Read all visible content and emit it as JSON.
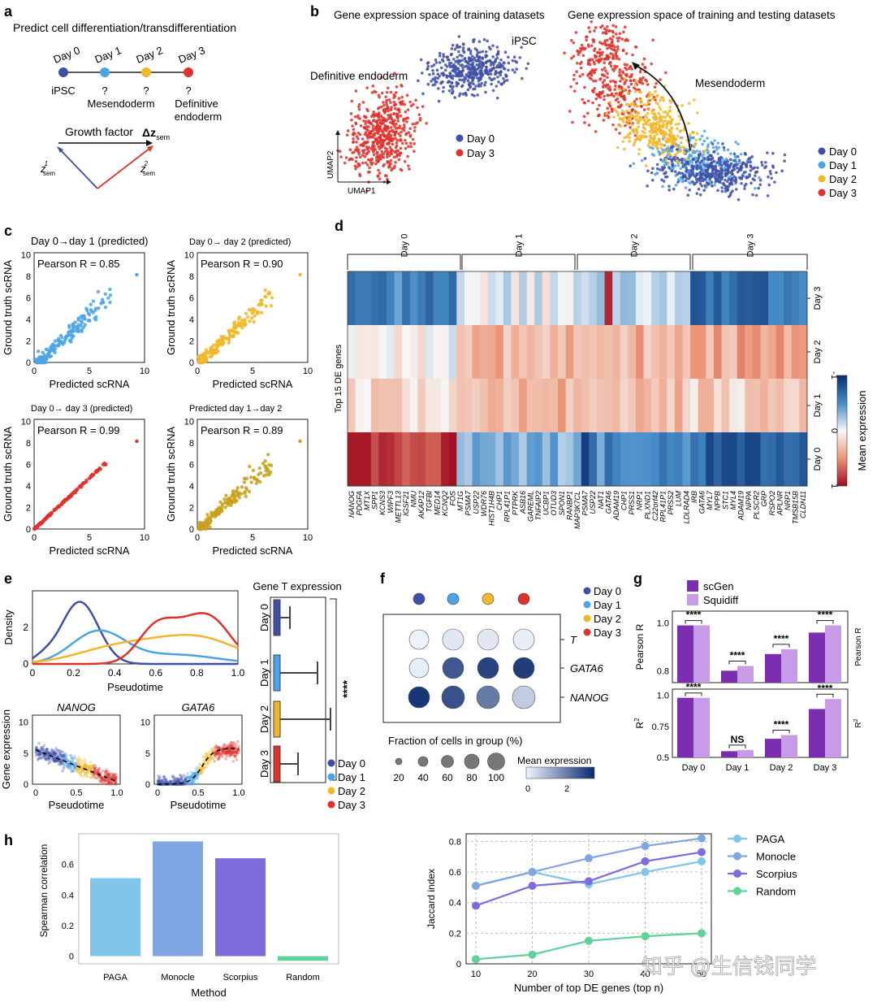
{
  "colors": {
    "day0": "#3f4fa8",
    "day1": "#4aa3e6",
    "day2": "#f1b72a",
    "day3": "#e0312a",
    "scgen": "#7b2fb0",
    "squidiff": "#c89be8",
    "paga": "#7fc6ea",
    "monocle": "#7fa6e3",
    "scorpius": "#7d6cdc",
    "random": "#5fd29a"
  },
  "panel_labels": [
    "a",
    "b",
    "c",
    "d",
    "e",
    "f",
    "g",
    "h"
  ],
  "panel_a": {
    "title": "Predict cell differentiation/transdifferentiation",
    "days": [
      "Day 0",
      "Day 1",
      "Day 2",
      "Day 3"
    ],
    "below": [
      "iPSC",
      "?",
      "?",
      "?"
    ],
    "below2": [
      "",
      "Mesendoderm",
      "",
      "Definitive"
    ],
    "below3": [
      "",
      "",
      "",
      "endoderm"
    ],
    "growth": "Growth factor",
    "delta": "Δz",
    "delta_sub": "sem",
    "z1": "z",
    "z1_sup": "1",
    "z1_sub": "sem",
    "z2": "z",
    "z2_sup": "2",
    "z2_sub": "sem"
  },
  "panel_b": {
    "title_left": "Gene expression space of training datasets",
    "title_right": "Gene expression space of training and testing datasets",
    "label_ipsc": "iPSC",
    "label_de": "Definitive endoderm",
    "label_mes": "Mesendoderm",
    "umap1": "UMAP1",
    "umap2": "UMAP2",
    "legend_left": [
      "Day 0",
      "Day 3"
    ],
    "legend_right": [
      "Day 0",
      "Day 1",
      "Day 2",
      "Day 3"
    ]
  },
  "panel_c": {
    "xlabel": "Predicted scRNA",
    "ylabel": "Ground truth scRNA",
    "ticks": [
      "0",
      "2",
      "4",
      "6",
      "8",
      "10"
    ],
    "xticks": [
      "0",
      "5",
      "10"
    ],
    "plots": [
      {
        "title": "Day 0→day 1 (predicted)",
        "r": "Pearson R = 0.85",
        "color": "day1"
      },
      {
        "title": "Day 0→ day 2 (predicted)",
        "r": "Pearson R = 0.90",
        "color": "day2"
      },
      {
        "title": "Day 0→ day 3 (predicted)",
        "r": "Pearson R = 0.99",
        "color": "day3"
      },
      {
        "title": "Predicted day 1→day 2",
        "r": "Pearson R = 0.89",
        "color": "gold"
      }
    ]
  },
  "panel_d": {
    "groups": [
      "Day 0",
      "Day 1",
      "Day 2",
      "Day 3"
    ],
    "rows": [
      "Day 3",
      "Day 2",
      "Day 1",
      "Day 0"
    ],
    "ylabel": "Top 15 DE genes",
    "cbar_label": "Mean expression",
    "cbar_ticks": [
      "-1",
      "0",
      "1"
    ],
    "genes": [
      "NANOG",
      "PDGFA",
      "MT1X",
      "SPP1",
      "KCNS3",
      "WIPF3",
      "METTL13",
      "IGSF21",
      "NMU",
      "AKAP12",
      "TGFBI",
      "MED14",
      "KCNQ2",
      "FOS",
      "MT1G",
      "PSMA7",
      "USP22",
      "WDR76",
      "HIST1H4B",
      "CHP1",
      "RPL41P1",
      "PTPRK",
      "ASB16",
      "GAREML",
      "TNFAIP2",
      "UCBP1",
      "OTUD3",
      "SPON1",
      "RANBP1",
      "MAP3K7CL",
      "PSMA7",
      "USP22",
      "NAT1",
      "GATA6",
      "ADAM19",
      "CHP1",
      "PRSS1",
      "NRP1",
      "PLXND1",
      "C22orf42",
      "RPL41P1",
      "PRSS2",
      "LUM",
      "LDLRAD4",
      "IRB",
      "GATA6",
      "MYL7",
      "NPPB",
      "STC1",
      "MYL4",
      "ADAM19",
      "NPPA",
      "PLSCR2",
      "GRP",
      "RSPO2",
      "APLNR",
      "NRP1",
      "TMSB15B",
      "CLDN11"
    ]
  },
  "panel_e": {
    "density_ylabel": "Density",
    "density_xlabel": "Pseudotime",
    "density_xticks": [
      "0",
      "0.2",
      "0.4",
      "0.6",
      "0.8",
      "1.0"
    ],
    "density_yticks": [
      "0",
      "2"
    ],
    "box_title": "Gene T expression",
    "box_labels": [
      "Day 0",
      "Day 1",
      "Day 2",
      "Day 3"
    ],
    "sig": "****",
    "nanog": "NANOG",
    "gata6": "GATA6",
    "ge_ylabel": "Gene expression",
    "ge_xlabel": "Pseudotime",
    "ge_xticks": [
      "0",
      "0.5",
      "1.0"
    ],
    "ge_yticks": [
      "0",
      "5",
      "10"
    ],
    "legend": [
      "Day 0",
      "Day 1",
      "Day 2",
      "Day 3"
    ]
  },
  "panel_f": {
    "genes": [
      "T",
      "GATA6",
      "NANOG"
    ],
    "legend": [
      "Day 0",
      "Day 1",
      "Day 2",
      "Day 3"
    ],
    "frac_title": "Fraction of cells in group (%)",
    "frac_ticks": [
      "20",
      "40",
      "60",
      "80",
      "100"
    ],
    "mean_title": "Mean expression",
    "mean_ticks": [
      "0",
      "2"
    ],
    "values": [
      [
        0.05,
        0.2,
        0.2,
        0.1
      ],
      [
        0.1,
        2.3,
        2.6,
        2.7
      ],
      [
        2.8,
        2.4,
        1.8,
        0.6
      ]
    ]
  },
  "panel_g": {
    "legend": [
      "scGen",
      "Squidiff"
    ],
    "ylabel_top": "Pearson R",
    "ylabel_bottom": "R",
    "ylabel_bottom_sup": "2",
    "right_top": "Pearson R",
    "right_bottom": "R",
    "right_bottom_sup": "2",
    "yticks_top": [
      "0.8",
      "1.0"
    ],
    "yticks_bottom": [
      "0.5",
      "0.75",
      "1.0"
    ],
    "categories": [
      "Day 0",
      "Day 1",
      "Day 2",
      "Day 3"
    ],
    "sig_top": [
      "****",
      "****",
      "****",
      "****"
    ],
    "sig_bottom": [
      "****",
      "NS",
      "****",
      "****"
    ],
    "pearson": {
      "scgen": [
        0.99,
        0.8,
        0.87,
        0.96
      ],
      "squidiff": [
        0.99,
        0.82,
        0.89,
        0.99
      ]
    },
    "r2": {
      "scgen": [
        0.98,
        0.55,
        0.65,
        0.89
      ],
      "squidiff": [
        0.98,
        0.56,
        0.68,
        0.97
      ]
    }
  },
  "chart_data": [
    {
      "type": "bar",
      "title": "",
      "categories": [
        "PAGA",
        "Monocle",
        "Scorpius",
        "Random"
      ],
      "values": [
        0.51,
        0.75,
        0.64,
        -0.03
      ],
      "xlabel": "Method",
      "ylabel": "Spearman correlation",
      "ylim": [
        -0.05,
        0.8
      ],
      "yticks": [
        "0",
        "0.2",
        "0.4",
        "0.6"
      ]
    },
    {
      "type": "line",
      "title": "",
      "x": [
        10,
        20,
        30,
        40,
        50
      ],
      "series": [
        {
          "name": "PAGA",
          "values": [
            0.51,
            0.6,
            0.52,
            0.6,
            0.67
          ]
        },
        {
          "name": "Monocle",
          "values": [
            0.51,
            0.6,
            0.69,
            0.77,
            0.82
          ]
        },
        {
          "name": "Scorpius",
          "values": [
            0.38,
            0.51,
            0.54,
            0.67,
            0.73
          ]
        },
        {
          "name": "Random",
          "values": [
            0.03,
            0.06,
            0.15,
            0.18,
            0.2
          ]
        }
      ],
      "xlabel": "Number of top DE genes (top n)",
      "ylabel": "Jaccard index",
      "xticks": [
        "10",
        "20",
        "30",
        "40",
        "50"
      ],
      "yticks": [
        "0",
        "0.2",
        "0.4",
        "0.6",
        "0.8"
      ],
      "ylim": [
        0,
        0.85
      ],
      "grid": true,
      "legend": "right"
    }
  ],
  "watermark": "知乎 @生信钱同学"
}
